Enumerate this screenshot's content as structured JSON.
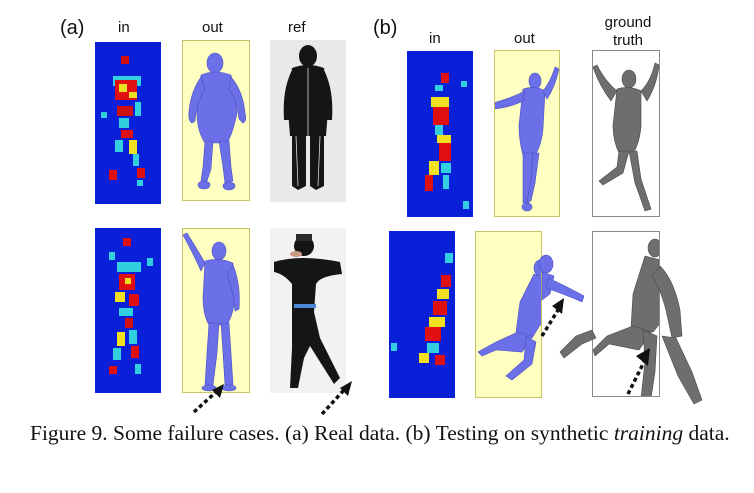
{
  "panels": {
    "a": {
      "label": "(a)",
      "columns": {
        "in": "in",
        "out": "out",
        "ref": "ref"
      }
    },
    "b": {
      "label": "(b)",
      "columns": {
        "in": "in",
        "out": "out",
        "ground_truth": "ground truth"
      }
    }
  },
  "caption": {
    "prefix": "Figure 9. Some failure cases. (a) Real data. (b) Testing on synthetic ",
    "emphasis": "training",
    "suffix": " data."
  },
  "colors": {
    "pressure_background": "#0a1fd8",
    "pressure_high": "#e01010",
    "pressure_mid": "#f0e020",
    "pressure_low": "#30d0e0",
    "mesh_blue": "#6b70e8",
    "mesh_gray": "#6e6e6e",
    "out_box_fill": "#ffffc2",
    "clothing": "#151515"
  },
  "icons": [
    "dashed-arrow-icon"
  ]
}
